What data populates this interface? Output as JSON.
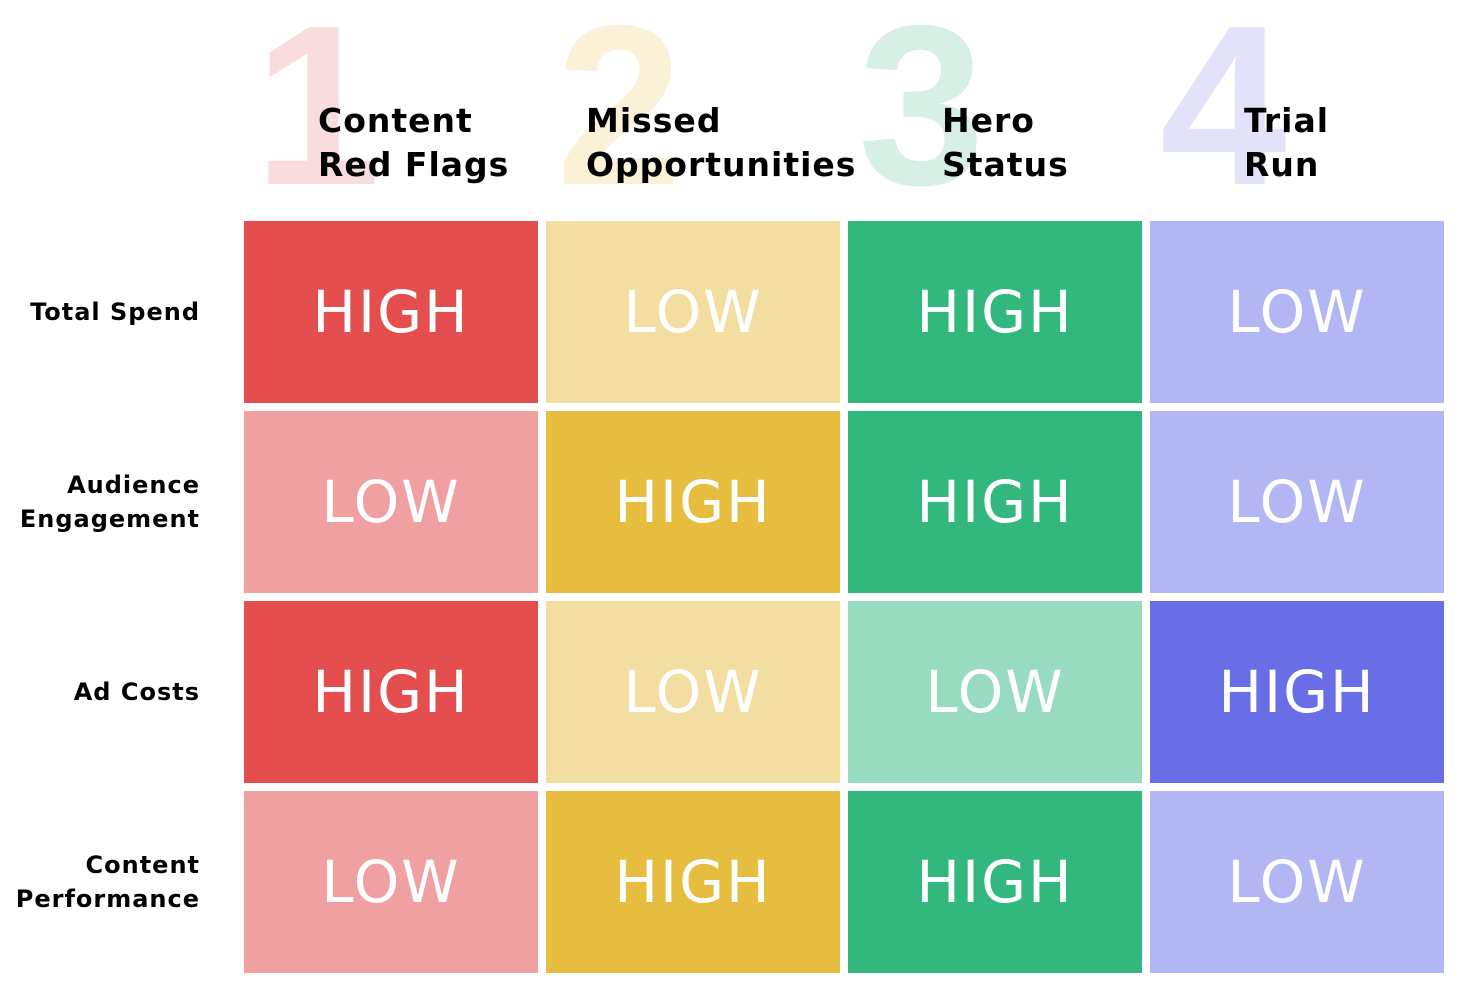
{
  "columns": [
    {
      "number": "1",
      "title_line1": "Content",
      "title_line2": "Red Flags",
      "number_color": "#f9dcdd",
      "high_color": "#e54e4f",
      "low_color": "#f0a0a1"
    },
    {
      "number": "2",
      "title_line1": "Missed",
      "title_line2": "Opportunities",
      "number_color": "#faf1d7",
      "high_color": "#e6bd3f",
      "low_color": "#f2dea0"
    },
    {
      "number": "3",
      "title_line1": "Hero",
      "title_line2": "Status",
      "number_color": "#d6f0e6",
      "high_color": "#32b77c",
      "low_color": "#99dbbe"
    },
    {
      "number": "4",
      "title_line1": "Trial",
      "title_line2": "Run",
      "number_color": "#e2e3f9",
      "high_color": "#6a6ee6",
      "low_color": "#b2b6f3"
    }
  ],
  "rows": [
    {
      "label_line1": "Total Spend",
      "label_line2": "",
      "values": [
        "HIGH",
        "LOW",
        "HIGH",
        "LOW"
      ]
    },
    {
      "label_line1": "Audience",
      "label_line2": "Engagement",
      "values": [
        "LOW",
        "HIGH",
        "HIGH",
        "LOW"
      ]
    },
    {
      "label_line1": "Ad Costs",
      "label_line2": "",
      "values": [
        "HIGH",
        "LOW",
        "LOW",
        "HIGH"
      ]
    },
    {
      "label_line1": "Content",
      "label_line2": "Performance",
      "values": [
        "LOW",
        "HIGH",
        "HIGH",
        "LOW"
      ]
    }
  ]
}
